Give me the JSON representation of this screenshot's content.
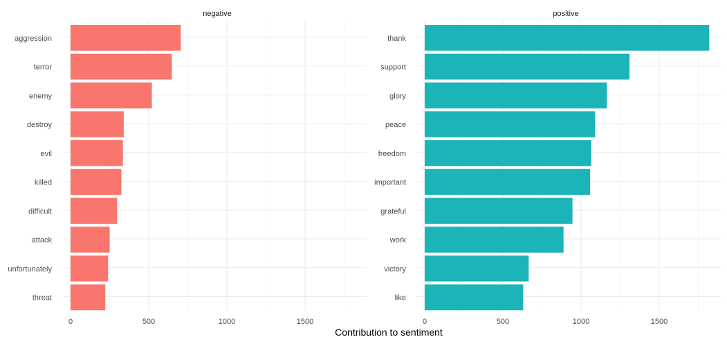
{
  "chart_data": {
    "type": "bar",
    "orientation": "horizontal",
    "xlabel": "Contribution to sentiment",
    "ylabel": "",
    "grid": true,
    "legend": "none",
    "xlim": [
      0,
      1820
    ],
    "x_ticks": [
      0,
      500,
      1000,
      1500
    ],
    "facets": [
      {
        "name": "negative",
        "color": "#F8766D",
        "categories": [
          "aggression",
          "terror",
          "enemy",
          "destroy",
          "evil",
          "killed",
          "difficult",
          "attack",
          "unfortunately",
          "threat"
        ],
        "values": [
          705,
          648,
          520,
          340,
          335,
          325,
          298,
          250,
          240,
          222
        ]
      },
      {
        "name": "positive",
        "color": "#1BB4B9",
        "categories": [
          "thank",
          "support",
          "glory",
          "peace",
          "freedom",
          "important",
          "grateful",
          "work",
          "victory",
          "like"
        ],
        "values": [
          1820,
          1310,
          1165,
          1090,
          1065,
          1058,
          945,
          888,
          665,
          630
        ]
      }
    ]
  }
}
